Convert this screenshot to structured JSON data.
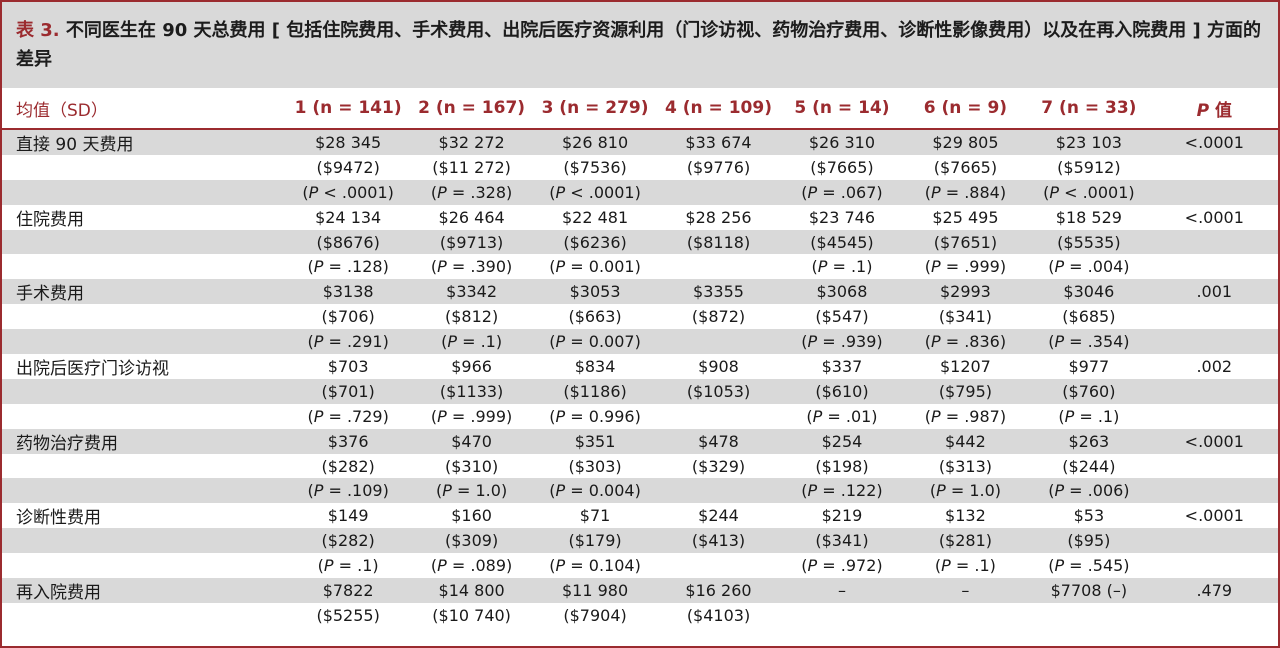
{
  "caption": {
    "label": "表 3.",
    "text": "不同医生在 90 天总费用 [ 包括住院费用、手术费用、出院后医疗资源利用（门诊访视、药物治疗费用、诊断性影像费用）以及在再入院费用 ] 方面的差异"
  },
  "header": {
    "col0": "均值（SD）",
    "groups": [
      "1 (n = 141)",
      "2 (n = 167)",
      "3 (n = 279)",
      "4 (n = 109)",
      "5 (n = 14)",
      "6 (n = 9)",
      "7 (n = 33)"
    ],
    "p_label_italic": "P",
    "p_label_rest": " 值"
  },
  "rows": [
    {
      "label": "直接 90 天费用",
      "cells": [
        "$28 345",
        "$32 272",
        "$26 810",
        "$33 674",
        "$26 310",
        "$29 805",
        "$23 103"
      ],
      "p": "<.0001"
    },
    {
      "label": "",
      "cells": [
        "($9472)",
        "($11 272)",
        "($7536)",
        "($9776)",
        "($7665)",
        "($7665)",
        "($5912)"
      ],
      "p": ""
    },
    {
      "label": "",
      "cells": [
        "(P < .0001)",
        "(P = .328)",
        "(P < .0001)",
        "",
        "(P = .067)",
        "(P = .884)",
        "(P < .0001)"
      ],
      "p": ""
    },
    {
      "label": "住院费用",
      "cells": [
        "$24 134",
        "$26 464",
        "$22 481",
        "$28 256",
        "$23 746",
        "$25 495",
        "$18 529"
      ],
      "p": "<.0001"
    },
    {
      "label": "",
      "cells": [
        "($8676)",
        "($9713)",
        "($6236)",
        "($8118)",
        "($4545)",
        "($7651)",
        "($5535)"
      ],
      "p": ""
    },
    {
      "label": "",
      "cells": [
        "(P = .128)",
        "(P = .390)",
        "(P = 0.001)",
        "",
        "(P = .1)",
        "(P = .999)",
        "(P = .004)"
      ],
      "p": ""
    },
    {
      "label": "手术费用",
      "cells": [
        "$3138",
        "$3342",
        "$3053",
        "$3355",
        "$3068",
        "$2993",
        "$3046"
      ],
      "p": ".001"
    },
    {
      "label": "",
      "cells": [
        "($706)",
        "($812)",
        "($663)",
        "($872)",
        "($547)",
        "($341)",
        "($685)"
      ],
      "p": ""
    },
    {
      "label": "",
      "cells": [
        "(P = .291)",
        "(P = .1)",
        "(P = 0.007)",
        "",
        "(P = .939)",
        "(P = .836)",
        "(P = .354)"
      ],
      "p": ""
    },
    {
      "label": "出院后医疗门诊访视",
      "cells": [
        "$703",
        "$966",
        "$834",
        "$908",
        "$337",
        "$1207",
        "$977"
      ],
      "p": ".002"
    },
    {
      "label": "",
      "cells": [
        "($701)",
        "($1133)",
        "($1186)",
        "($1053)",
        "($610)",
        "($795)",
        "($760)"
      ],
      "p": ""
    },
    {
      "label": "",
      "cells": [
        "(P = .729)",
        "(P = .999)",
        "(P = 0.996)",
        "",
        "(P = .01)",
        "(P = .987)",
        "(P = .1)"
      ],
      "p": ""
    },
    {
      "label": "药物治疗费用",
      "cells": [
        "$376",
        "$470",
        "$351",
        "$478",
        "$254",
        "$442",
        "$263"
      ],
      "p": "<.0001"
    },
    {
      "label": "",
      "cells": [
        "($282)",
        "($310)",
        "($303)",
        "($329)",
        "($198)",
        "($313)",
        "($244)"
      ],
      "p": ""
    },
    {
      "label": "",
      "cells": [
        "(P = .109)",
        "(P = 1.0)",
        "(P = 0.004)",
        "",
        "(P = .122)",
        "(P = 1.0)",
        "(P = .006)"
      ],
      "p": ""
    },
    {
      "label": "诊断性费用",
      "cells": [
        "$149",
        "$160",
        "$71",
        "$244",
        "$219",
        "$132",
        "$53"
      ],
      "p": "<.0001"
    },
    {
      "label": "",
      "cells": [
        "($282)",
        "($309)",
        "($179)",
        "($413)",
        "($341)",
        "($281)",
        "($95)"
      ],
      "p": ""
    },
    {
      "label": "",
      "cells": [
        "(P = .1)",
        "(P = .089)",
        "(P = 0.104)",
        "",
        "(P = .972)",
        "(P = .1)",
        "(P = .545)"
      ],
      "p": ""
    },
    {
      "label": "再入院费用",
      "cells": [
        "$7822",
        "$14 800",
        "$11 980",
        "$16 260",
        "–",
        "–",
        "$7708 (–)"
      ],
      "p": ".479"
    },
    {
      "label": "",
      "cells": [
        "($5255)",
        "($10 740)",
        "($7904)",
        "($4103)",
        "",
        "",
        ""
      ],
      "p": ""
    }
  ]
}
